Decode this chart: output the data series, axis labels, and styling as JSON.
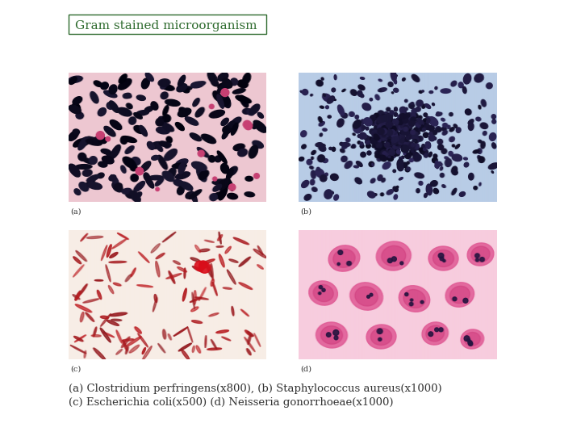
{
  "title": "Gram stained microorganism",
  "title_color": "#2d6a2d",
  "title_fontsize": 11,
  "title_box_color": "#2d6a2d",
  "caption_line1": "(a) Clostridium perfringens(x800), (b) Staphylococcus aureus(x1000)",
  "caption_line2": "(c) Escherichia coli(x500) (d) Neisseria gonorrhoeae(x1000)",
  "caption_fontsize": 9.5,
  "caption_color": "#333333",
  "background_color": "#ffffff",
  "label_a": "(a)",
  "label_b": "(b)",
  "label_c": "(c)",
  "label_d": "(d)",
  "label_fontsize": 7,
  "img_a_bg": [
    0.94,
    0.8,
    0.84
  ],
  "img_b_bg": [
    0.72,
    0.8,
    0.9
  ],
  "img_c_bg": [
    0.97,
    0.93,
    0.9
  ],
  "img_d_bg": [
    0.96,
    0.76,
    0.82
  ]
}
